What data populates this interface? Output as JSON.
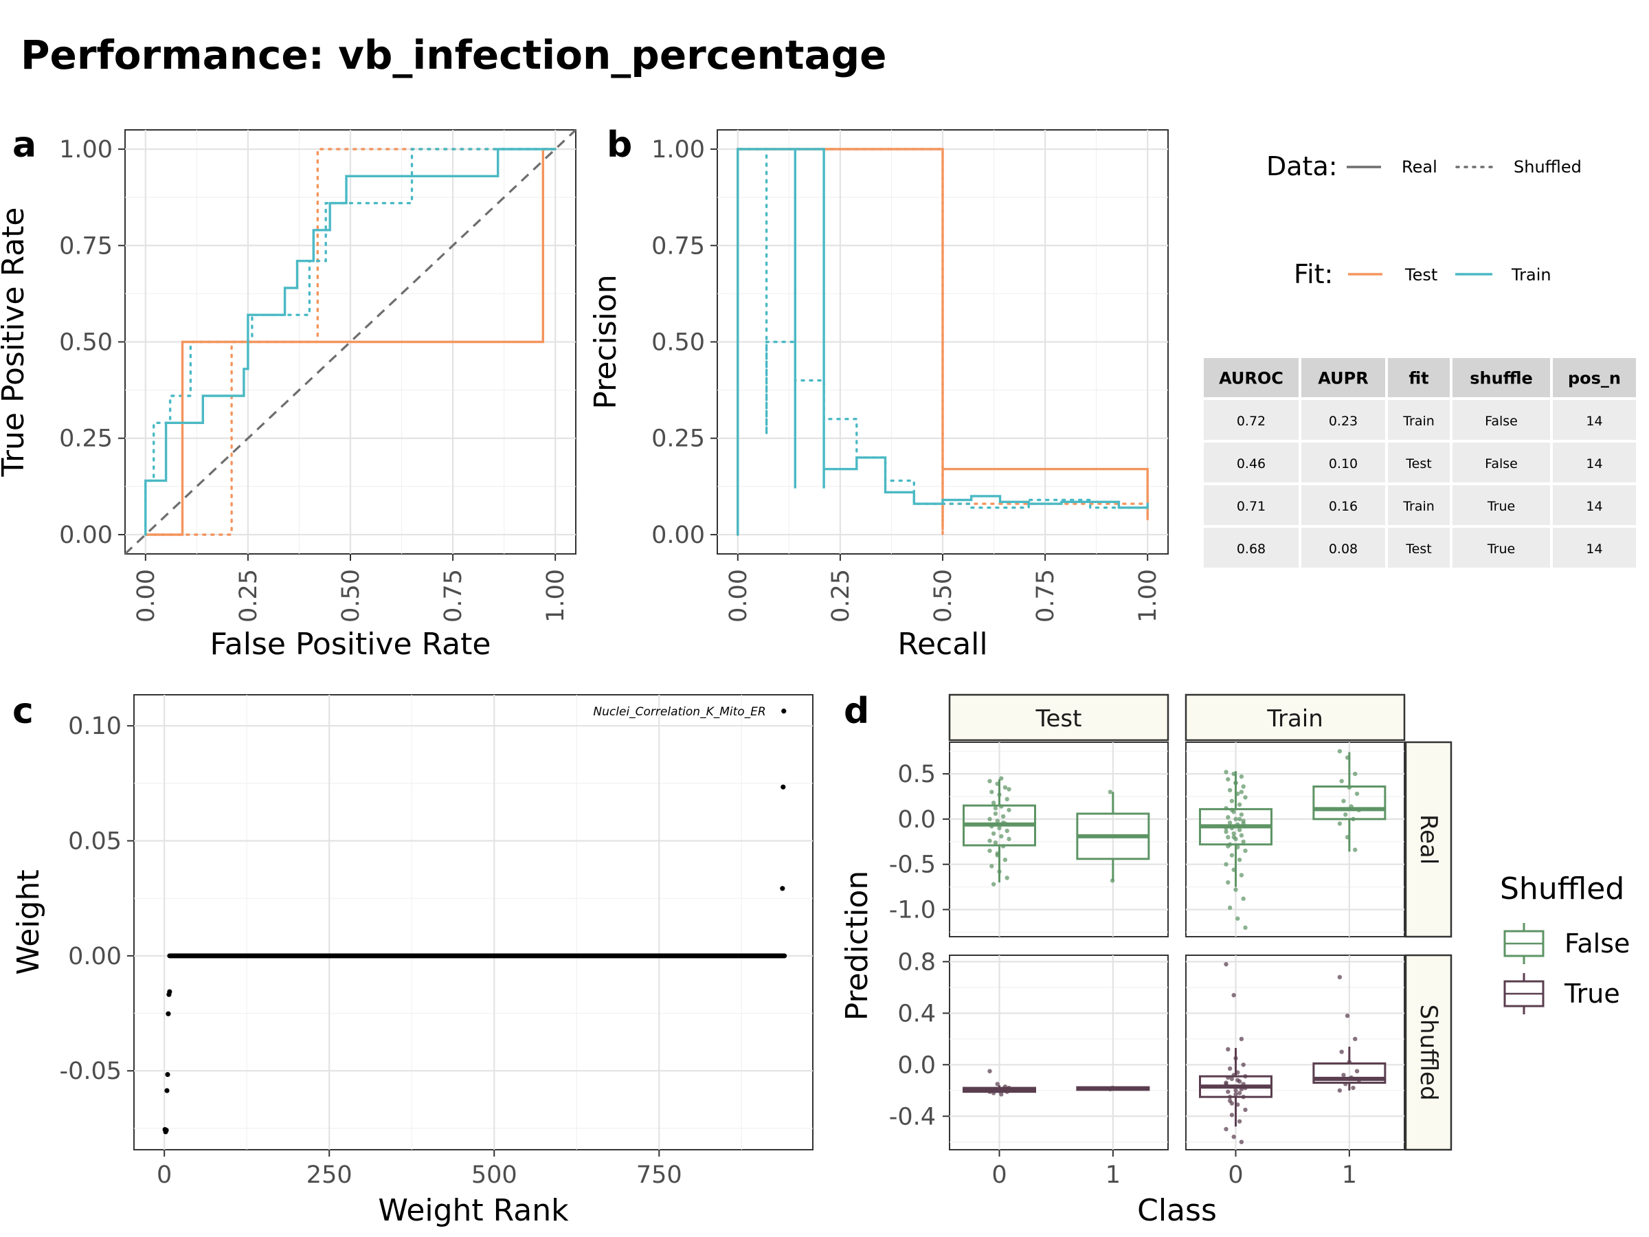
{
  "title": "Performance: vb_infection_percentage",
  "colors": {
    "test": "#f4955e",
    "train": "#4ab9c4",
    "diag": "#6e6e6e",
    "shuffled_false": "#5e9465",
    "shuffled_true": "#5a3e4f",
    "table_header": "#d4d4d4",
    "table_cell": "#ececec"
  },
  "legend": {
    "data_title": "Data:",
    "data_items": [
      {
        "label": "Real",
        "linetype": "solid"
      },
      {
        "label": "Shuffled",
        "linetype": "dotted"
      }
    ],
    "fit_title": "Fit:",
    "fit_items": [
      {
        "label": "Test",
        "color": "#f4955e"
      },
      {
        "label": "Train",
        "color": "#4ab9c4"
      }
    ],
    "shuffled_title": "Shuffled",
    "shuffled_items": [
      {
        "label": "False",
        "color": "#5e9465"
      },
      {
        "label": "True",
        "color": "#5a3e4f"
      }
    ]
  },
  "table": {
    "headers": [
      "AUROC",
      "AUPR",
      "fit",
      "shuffle",
      "pos_n"
    ],
    "rows": [
      [
        "0.72",
        "0.23",
        "Train",
        "False",
        "14"
      ],
      [
        "0.46",
        "0.10",
        "Test",
        "False",
        "14"
      ],
      [
        "0.71",
        "0.16",
        "Train",
        "True",
        "14"
      ],
      [
        "0.68",
        "0.08",
        "Test",
        "True",
        "14"
      ]
    ]
  },
  "chart_data": [
    {
      "id": "a",
      "tag": "a",
      "type": "line",
      "xlabel": "False Positive Rate",
      "ylabel": "True Positive Rate",
      "xlim": [
        -0.05,
        1.05
      ],
      "ylim": [
        -0.05,
        1.05
      ],
      "xticks": [
        "0.00",
        "0.25",
        "0.50",
        "0.75",
        "1.00"
      ],
      "yticks": [
        "0.00",
        "0.25",
        "0.50",
        "0.75",
        "1.00"
      ],
      "diagonal": true,
      "series": [
        {
          "fit": "Test",
          "shuffle": "False",
          "x": [
            0,
            0.09,
            0.09,
            0.97,
            0.97,
            1.0
          ],
          "y": [
            0,
            0,
            0.5,
            0.5,
            1.0,
            1.0
          ]
        },
        {
          "fit": "Test",
          "shuffle": "True",
          "x": [
            0,
            0.21,
            0.21,
            0.42,
            0.42,
            1.0
          ],
          "y": [
            0,
            0,
            0.5,
            0.5,
            1.0,
            1.0
          ]
        },
        {
          "fit": "Train",
          "shuffle": "False",
          "x": [
            0,
            0,
            0.05,
            0.05,
            0.14,
            0.14,
            0.24,
            0.24,
            0.25,
            0.25,
            0.34,
            0.34,
            0.37,
            0.37,
            0.41,
            0.41,
            0.45,
            0.45,
            0.49,
            0.49,
            0.86,
            0.86,
            1.0
          ],
          "y": [
            0,
            0.14,
            0.14,
            0.29,
            0.29,
            0.36,
            0.36,
            0.43,
            0.43,
            0.57,
            0.57,
            0.64,
            0.64,
            0.71,
            0.71,
            0.79,
            0.79,
            0.86,
            0.86,
            0.93,
            0.93,
            1.0,
            1.0
          ]
        },
        {
          "fit": "Train",
          "shuffle": "True",
          "x": [
            0,
            0,
            0.02,
            0.02,
            0.06,
            0.06,
            0.11,
            0.11,
            0.26,
            0.26,
            0.4,
            0.4,
            0.44,
            0.44,
            0.52,
            0.52,
            0.65,
            0.65,
            1.0
          ],
          "y": [
            0,
            0.14,
            0.14,
            0.29,
            0.29,
            0.36,
            0.36,
            0.5,
            0.5,
            0.57,
            0.57,
            0.71,
            0.71,
            0.86,
            0.86,
            0.86,
            0.86,
            1.0,
            1.0
          ]
        }
      ]
    },
    {
      "id": "b",
      "tag": "b",
      "type": "line",
      "xlabel": "Recall",
      "ylabel": "Precision",
      "xlim": [
        -0.05,
        1.05
      ],
      "ylim": [
        -0.05,
        1.05
      ],
      "xticks": [
        "0.00",
        "0.25",
        "0.50",
        "0.75",
        "1.00"
      ],
      "yticks": [
        "0.00",
        "0.25",
        "0.50",
        "0.75",
        "1.00"
      ],
      "series": [
        {
          "fit": "Test",
          "shuffle": "False",
          "x": [
            0,
            0,
            0.5,
            0.5,
            0.5,
            1.0,
            1.0
          ],
          "y": [
            0,
            1.0,
            1.0,
            0.02,
            0.17,
            0.17,
            0.04
          ]
        },
        {
          "fit": "Test",
          "shuffle": "True",
          "x": [
            0,
            0,
            0.5,
            0.5,
            0.5,
            1.0,
            1.0
          ],
          "y": [
            0,
            1.0,
            1.0,
            0.0,
            0.08,
            0.08,
            0.05
          ]
        },
        {
          "fit": "Train",
          "shuffle": "False",
          "x": [
            0,
            0,
            0.14,
            0.14,
            0.14,
            0.21,
            0.21,
            0.21,
            0.29,
            0.29,
            0.36,
            0.36,
            0.43,
            0.43,
            0.5,
            0.5,
            0.57,
            0.57,
            0.64,
            0.64,
            0.71,
            0.71,
            0.79,
            0.79,
            0.93,
            0.93,
            1.0,
            1.0
          ],
          "y": [
            0,
            1.0,
            1.0,
            0.12,
            1.0,
            1.0,
            0.12,
            0.17,
            0.17,
            0.2,
            0.2,
            0.11,
            0.11,
            0.08,
            0.08,
            0.09,
            0.09,
            0.1,
            0.1,
            0.085,
            0.085,
            0.08,
            0.08,
            0.085,
            0.085,
            0.07,
            0.07,
            0.08
          ]
        },
        {
          "fit": "Train",
          "shuffle": "True",
          "x": [
            0,
            0,
            0.07,
            0.07,
            0.07,
            0.14,
            0.14,
            0.21,
            0.21,
            0.29,
            0.29,
            0.36,
            0.36,
            0.43,
            0.43,
            0.57,
            0.57,
            0.71,
            0.71,
            0.86,
            0.86,
            1.0,
            1.0
          ],
          "y": [
            0,
            1.0,
            1.0,
            0.26,
            0.5,
            0.5,
            0.4,
            0.4,
            0.3,
            0.3,
            0.2,
            0.2,
            0.14,
            0.14,
            0.08,
            0.08,
            0.07,
            0.07,
            0.09,
            0.09,
            0.07,
            0.07,
            0.06
          ]
        }
      ]
    },
    {
      "id": "c",
      "tag": "c",
      "type": "scatter",
      "xlabel": "Weight Rank",
      "ylabel": "Weight",
      "xlim": [
        -46,
        983
      ],
      "ylim": [
        -0.0843,
        0.1135
      ],
      "xticks": [
        0,
        250,
        500,
        750
      ],
      "yticks": [
        "-0.05",
        "0.00",
        "0.05",
        "0.10"
      ],
      "zero_line_x": [
        8,
        940
      ],
      "points": [
        {
          "x": 1,
          "y": -0.0755
        },
        {
          "x": 2,
          "y": -0.0765
        },
        {
          "x": 3,
          "y": -0.0758
        },
        {
          "x": 4,
          "y": -0.0586
        },
        {
          "x": 5,
          "y": -0.0516
        },
        {
          "x": 6,
          "y": -0.0252
        },
        {
          "x": 7,
          "y": -0.0168
        },
        {
          "x": 8,
          "y": -0.0156
        },
        {
          "x": 937,
          "y": 0.0293
        },
        {
          "x": 938,
          "y": 0.0734
        },
        {
          "x": 939,
          "y": 0.1064
        }
      ],
      "annotation": {
        "text": "Nuclei_Correlation_K_Mito_ER",
        "x": 939,
        "y": 0.1064
      }
    },
    {
      "id": "d",
      "tag": "d",
      "type": "box",
      "xlabel": "Class",
      "ylabel": "Prediction",
      "legend_title": "Shuffled",
      "columns": [
        "Test",
        "Train"
      ],
      "rows": [
        "Real",
        "Shuffled"
      ],
      "categories": [
        "0",
        "1"
      ],
      "row_ylim": {
        "Real": [
          -1.3,
          0.85
        ],
        "Shuffled": [
          -0.66,
          0.85
        ]
      },
      "row_yticks": {
        "Real": [
          "-1.0",
          "-0.5",
          "0.0",
          "0.5"
        ],
        "Shuffled": [
          "-0.4",
          "0.0",
          "0.4",
          "0.8"
        ]
      },
      "boxes": [
        {
          "row": "Real",
          "col": "Test",
          "class": "0",
          "shuffled": "False",
          "q1": -0.29,
          "median": -0.06,
          "q3": 0.15,
          "lo": -0.7,
          "hi": 0.44
        },
        {
          "row": "Real",
          "col": "Test",
          "class": "1",
          "shuffled": "False",
          "q1": -0.44,
          "median": -0.19,
          "q3": 0.06,
          "lo": -0.68,
          "hi": 0.3
        },
        {
          "row": "Real",
          "col": "Train",
          "class": "0",
          "shuffled": "False",
          "q1": -0.28,
          "median": -0.08,
          "q3": 0.11,
          "lo": -0.75,
          "hi": 0.53
        },
        {
          "row": "Real",
          "col": "Train",
          "class": "1",
          "shuffled": "False",
          "q1": 0.0,
          "median": 0.11,
          "q3": 0.36,
          "lo": -0.36,
          "hi": 0.74
        },
        {
          "row": "Shuffled",
          "col": "Test",
          "class": "0",
          "shuffled": "True",
          "q1": -0.21,
          "median": -0.2,
          "q3": -0.18,
          "lo": -0.22,
          "hi": -0.16
        },
        {
          "row": "Shuffled",
          "col": "Test",
          "class": "1",
          "shuffled": "True",
          "q1": -0.195,
          "median": -0.185,
          "q3": -0.175,
          "lo": -0.2,
          "hi": -0.17
        },
        {
          "row": "Shuffled",
          "col": "Train",
          "class": "0",
          "shuffled": "True",
          "q1": -0.25,
          "median": -0.17,
          "q3": -0.09,
          "lo": -0.48,
          "hi": 0.13
        },
        {
          "row": "Shuffled",
          "col": "Train",
          "class": "1",
          "shuffled": "True",
          "q1": -0.14,
          "median": -0.11,
          "q3": 0.01,
          "lo": -0.2,
          "hi": 0.14
        }
      ],
      "jitter_points": [
        {
          "row": "Real",
          "col": "Test",
          "class": "0",
          "y": [
            0.42,
            0.39,
            0.35,
            0.3,
            0.27,
            0.22,
            0.18,
            0.14,
            0.1,
            0.06,
            0.03,
            0.0,
            -0.02,
            -0.05,
            -0.08,
            -0.1,
            -0.13,
            -0.16,
            -0.19,
            -0.22,
            -0.26,
            -0.3,
            -0.35,
            -0.4,
            -0.45,
            -0.52,
            -0.58,
            -0.65,
            -0.72,
            0.45,
            0.33,
            0.12,
            -0.04,
            -0.24,
            -0.38
          ]
        },
        {
          "row": "Real",
          "col": "Test",
          "class": "1",
          "y": [
            0.3,
            -0.68
          ]
        },
        {
          "row": "Real",
          "col": "Train",
          "class": "0",
          "y": [
            0.52,
            0.5,
            0.47,
            0.44,
            0.4,
            0.36,
            0.32,
            0.28,
            0.24,
            0.2,
            0.16,
            0.12,
            0.08,
            0.05,
            0.02,
            0.0,
            -0.02,
            -0.04,
            -0.06,
            -0.08,
            -0.1,
            -0.12,
            -0.14,
            -0.16,
            -0.18,
            -0.2,
            -0.22,
            -0.25,
            -0.28,
            -0.31,
            -0.35,
            -0.4,
            -0.45,
            -0.5,
            -0.56,
            -0.62,
            -0.7,
            -0.78,
            -0.88,
            -0.98,
            -1.1,
            -1.2,
            0.1,
            0.0,
            -0.1,
            -0.2,
            0.3,
            -0.3,
            0.4,
            -0.05
          ]
        },
        {
          "row": "Real",
          "col": "Train",
          "class": "1",
          "y": [
            0.75,
            0.68,
            0.5,
            0.42,
            0.35,
            0.28,
            0.2,
            0.14,
            0.1,
            0.05,
            0.0,
            -0.05,
            -0.2,
            -0.34
          ]
        },
        {
          "row": "Shuffled",
          "col": "Test",
          "class": "0",
          "y": [
            -0.05,
            -0.15,
            -0.17,
            -0.19,
            -0.2,
            -0.21,
            -0.22,
            -0.23,
            -0.18,
            -0.2,
            -0.19,
            -0.21
          ]
        },
        {
          "row": "Shuffled",
          "col": "Test",
          "class": "1",
          "y": [
            -0.19,
            -0.18,
            -0.185
          ]
        },
        {
          "row": "Shuffled",
          "col": "Train",
          "class": "0",
          "y": [
            0.78,
            0.54,
            0.2,
            0.12,
            0.05,
            0.0,
            -0.03,
            -0.06,
            -0.09,
            -0.11,
            -0.13,
            -0.15,
            -0.17,
            -0.19,
            -0.21,
            -0.23,
            -0.25,
            -0.28,
            -0.31,
            -0.35,
            -0.39,
            -0.44,
            -0.5,
            -0.56,
            -0.6,
            -0.1,
            -0.2,
            -0.15,
            -0.25,
            -0.12,
            -0.18,
            -0.3,
            -0.22,
            -0.14,
            -0.08
          ]
        },
        {
          "row": "Shuffled",
          "col": "Train",
          "class": "1",
          "y": [
            0.68,
            0.38,
            0.2,
            0.1,
            0.02,
            -0.05,
            -0.08,
            -0.1,
            -0.12,
            -0.15,
            -0.18,
            -0.2
          ]
        }
      ]
    }
  ]
}
